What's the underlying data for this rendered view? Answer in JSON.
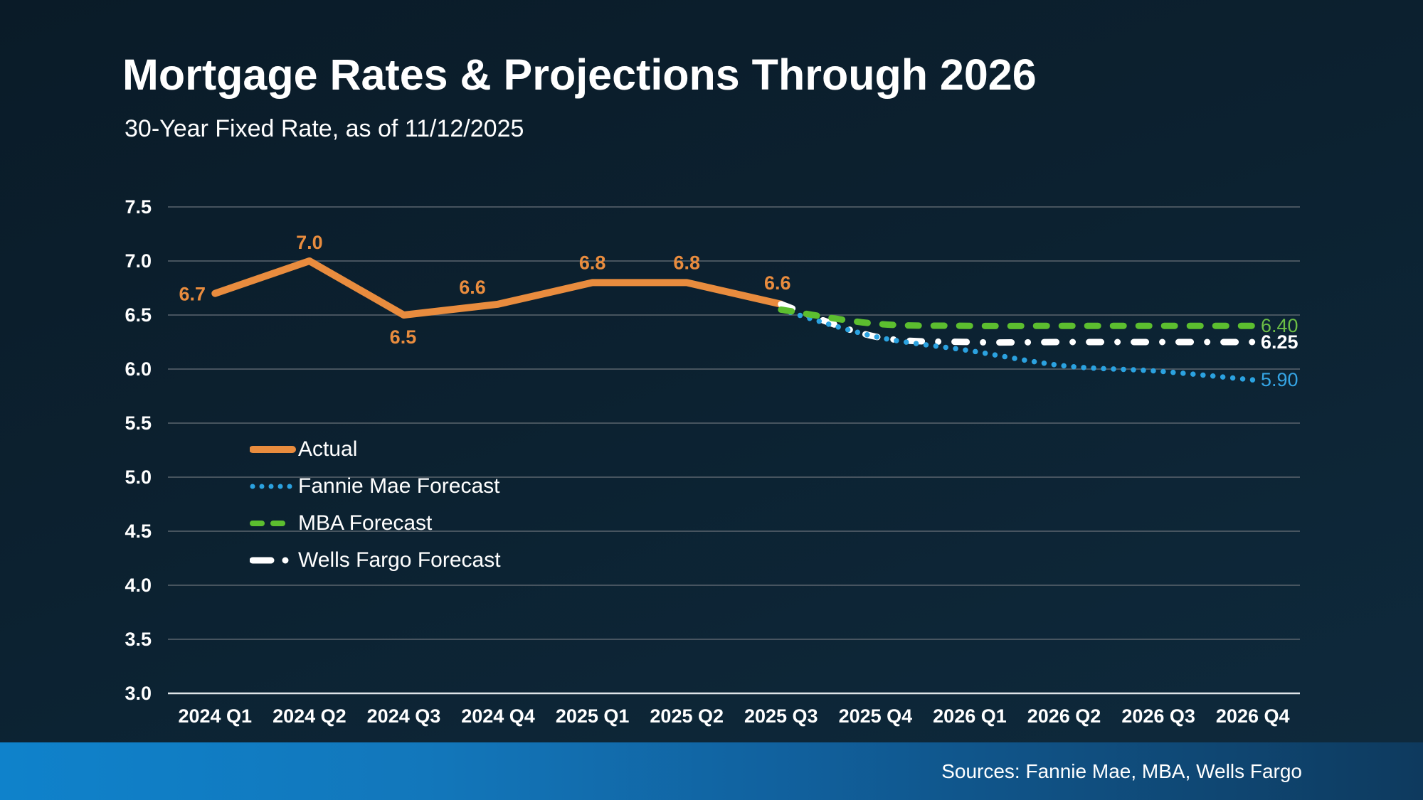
{
  "slide": {
    "title": "Mortgage Rates & Projections Through 2026",
    "subtitle": "30-Year Fixed Rate, as of 11/12/2025",
    "sources": "Sources: Fannie Mae, MBA, Wells Fargo"
  },
  "colors": {
    "background_top": "#0a1b28",
    "background_mid": "#0c2130",
    "background_bottom": "#0e2a3d",
    "text": "#ffffff",
    "gridline": "#5b656e",
    "axis_line": "#dfe5e9",
    "actual": "#e98c3e",
    "fannie_mae": "#2ba2e0",
    "mba": "#5cbe2f",
    "wells_fargo": "#ffffff",
    "fannie_label": "#35a5e5",
    "mba_label": "#6cbf45",
    "footer_bar_left": "#0f82cb",
    "footer_bar_right": "#0e3a5e"
  },
  "chart_data": {
    "type": "line",
    "title": "Mortgage Rates & Projections Through 2026",
    "subtitle": "30-Year Fixed Rate, as of 11/12/2025",
    "categories": [
      "2024 Q1",
      "2024 Q2",
      "2024 Q3",
      "2024 Q4",
      "2025 Q1",
      "2025 Q2",
      "2025 Q3",
      "2025 Q4",
      "2026 Q1",
      "2026 Q2",
      "2026 Q3",
      "2026 Q4"
    ],
    "xlabel": "",
    "ylabel": "",
    "ylim": [
      3.0,
      7.5
    ],
    "ytick_step": 0.5,
    "grid": true,
    "legend_position": "inside-left",
    "series": [
      {
        "name": "Actual",
        "style": "solid",
        "color_key": "actual",
        "start_index": 0,
        "curve": false,
        "values": [
          6.7,
          7.0,
          6.5,
          6.6,
          6.8,
          6.8,
          6.6
        ],
        "point_labels": [
          "6.7",
          "7.0",
          "6.5",
          "6.6",
          "6.8",
          "6.8",
          "6.6"
        ]
      },
      {
        "name": "Fannie Mae Forecast",
        "style": "dotted",
        "color_key": "fannie_mae",
        "label_color_key": "fannie_label",
        "start_index": 6,
        "curve": true,
        "values": [
          6.55,
          6.3,
          6.17,
          6.03,
          5.98,
          5.9
        ],
        "end_label": "5.90",
        "end_label_bold": false
      },
      {
        "name": "MBA Forecast",
        "style": "dashed",
        "color_key": "mba",
        "label_color_key": "mba_label",
        "start_index": 6,
        "curve": true,
        "values": [
          6.55,
          6.42,
          6.4,
          6.4,
          6.4,
          6.4
        ],
        "end_label": "6.40",
        "end_label_bold": false
      },
      {
        "name": "Wells Fargo Forecast",
        "style": "dashdot",
        "color_key": "wells_fargo",
        "label_color_key": "text",
        "start_index": 6,
        "curve": true,
        "values": [
          6.6,
          6.3,
          6.25,
          6.25,
          6.25,
          6.25
        ],
        "end_label": "6.25",
        "end_label_bold": true
      }
    ]
  }
}
